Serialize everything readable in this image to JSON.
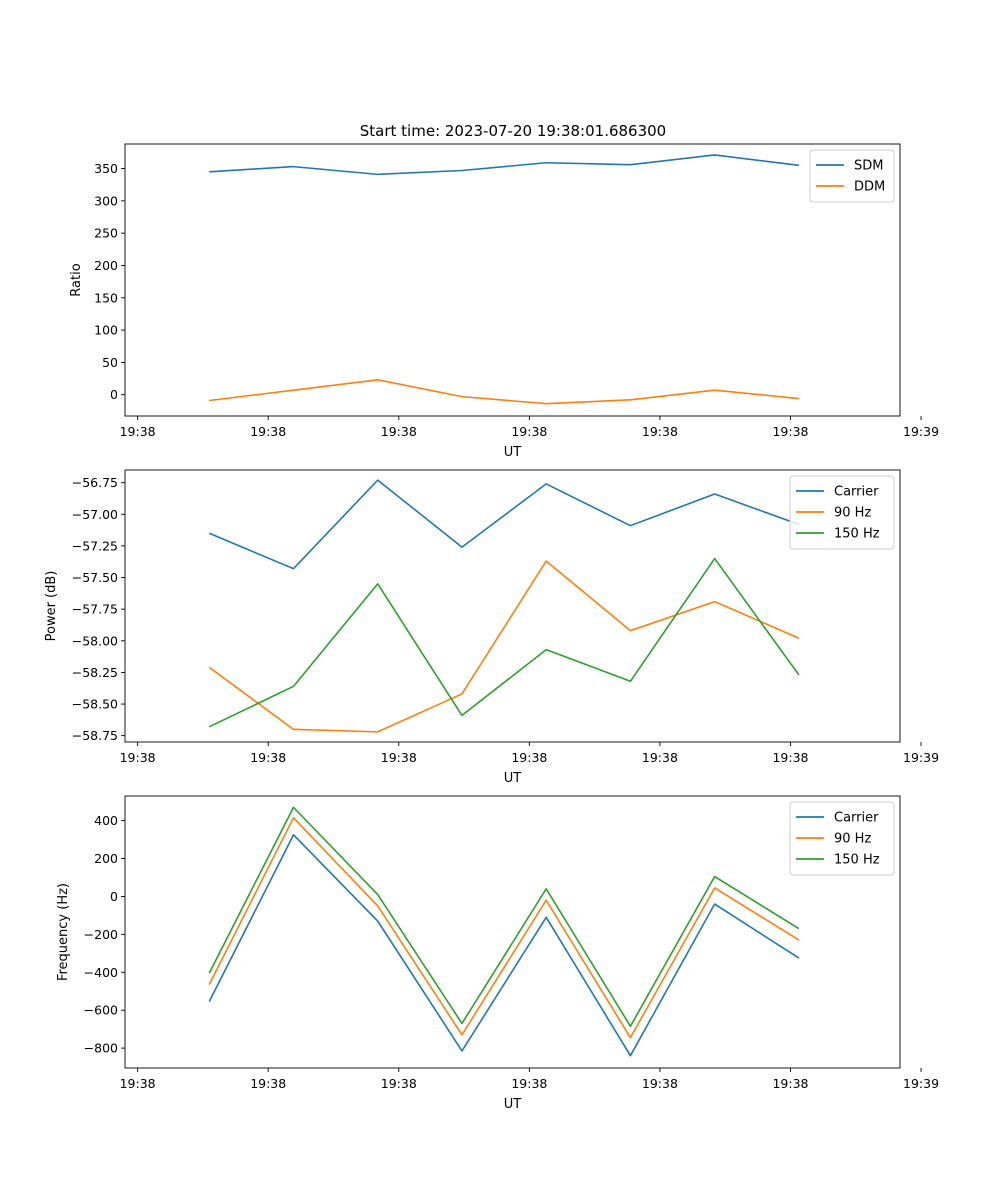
{
  "figure": {
    "title": "Start time: 2023-07-20 19:38:01.686300"
  },
  "chart_data": [
    {
      "id": "ratio",
      "type": "line",
      "title": "Start time: 2023-07-20 19:38:01.686300",
      "xlabel": "UT",
      "ylabel": "Ratio",
      "x_index": [
        1,
        2,
        3,
        4,
        5,
        6,
        7,
        8
      ],
      "xlim": [
        0,
        9.2
      ],
      "x_ticks": [
        0.15,
        1.7,
        3.25,
        4.8,
        6.35,
        7.9,
        9.45
      ],
      "x_tick_labels": [
        "19:38",
        "19:38",
        "19:38",
        "19:38",
        "19:38",
        "19:38",
        "19:39"
      ],
      "ylim": [
        -33,
        388
      ],
      "y_ticks": [
        0,
        50,
        100,
        150,
        200,
        250,
        300,
        350
      ],
      "y_tick_labels": [
        "0",
        "50",
        "100",
        "150",
        "200",
        "250",
        "300",
        "350"
      ],
      "legend_position": "top-right",
      "series": [
        {
          "name": "SDM",
          "color": "#1f77b4",
          "values": [
            345,
            353,
            341,
            347,
            359,
            356,
            371,
            355
          ]
        },
        {
          "name": "DDM",
          "color": "#ff7f0e",
          "values": [
            -9,
            7,
            23,
            -3,
            -14,
            -8,
            7,
            -6
          ]
        }
      ]
    },
    {
      "id": "power",
      "type": "line",
      "xlabel": "UT",
      "ylabel": "Power (dB)",
      "x_index": [
        1,
        2,
        3,
        4,
        5,
        6,
        7,
        8
      ],
      "xlim": [
        0,
        9.2
      ],
      "x_ticks": [
        0.15,
        1.7,
        3.25,
        4.8,
        6.35,
        7.9,
        9.45
      ],
      "x_tick_labels": [
        "19:38",
        "19:38",
        "19:38",
        "19:38",
        "19:38",
        "19:38",
        "19:39"
      ],
      "ylim": [
        -58.8,
        -56.65
      ],
      "y_ticks": [
        -56.75,
        -57.0,
        -57.25,
        -57.5,
        -57.75,
        -58.0,
        -58.25,
        -58.5,
        -58.75
      ],
      "y_tick_labels": [
        "−56.75",
        "−57.00",
        "−57.25",
        "−57.50",
        "−57.75",
        "−58.00",
        "−58.25",
        "−58.50",
        "−58.75"
      ],
      "legend_position": "top-right",
      "series": [
        {
          "name": "Carrier",
          "color": "#1f77b4",
          "values": [
            -57.15,
            -57.43,
            -56.73,
            -57.26,
            -56.76,
            -57.09,
            -56.84,
            -57.08
          ]
        },
        {
          "name": "90 Hz",
          "color": "#ff7f0e",
          "values": [
            -58.21,
            -58.7,
            -58.72,
            -58.42,
            -57.37,
            -57.92,
            -57.69,
            -57.98
          ]
        },
        {
          "name": "150 Hz",
          "color": "#2ca02c",
          "values": [
            -58.68,
            -58.36,
            -57.55,
            -58.59,
            -58.07,
            -58.32,
            -57.35,
            -58.27
          ]
        }
      ]
    },
    {
      "id": "frequency",
      "type": "line",
      "xlabel": "UT",
      "ylabel": "Frequency (Hz)",
      "x_index": [
        1,
        2,
        3,
        4,
        5,
        6,
        7,
        8
      ],
      "xlim": [
        0,
        9.2
      ],
      "x_ticks": [
        0.15,
        1.7,
        3.25,
        4.8,
        6.35,
        7.9,
        9.45
      ],
      "x_tick_labels": [
        "19:38",
        "19:38",
        "19:38",
        "19:38",
        "19:38",
        "19:38",
        "19:39"
      ],
      "ylim": [
        -905,
        530
      ],
      "y_ticks": [
        400,
        200,
        0,
        -200,
        -400,
        -600,
        -800
      ],
      "y_tick_labels": [
        "400",
        "200",
        "0",
        "−200",
        "−400",
        "−600",
        "−800"
      ],
      "legend_position": "top-right",
      "series": [
        {
          "name": "Carrier",
          "color": "#1f77b4",
          "values": [
            -555,
            325,
            -130,
            -815,
            -110,
            -840,
            -40,
            -325
          ]
        },
        {
          "name": "90 Hz",
          "color": "#ff7f0e",
          "values": [
            -465,
            415,
            -50,
            -730,
            -20,
            -745,
            45,
            -230
          ]
        },
        {
          "name": "150 Hz",
          "color": "#2ca02c",
          "values": [
            -405,
            470,
            10,
            -670,
            40,
            -685,
            105,
            -170
          ]
        }
      ]
    }
  ]
}
